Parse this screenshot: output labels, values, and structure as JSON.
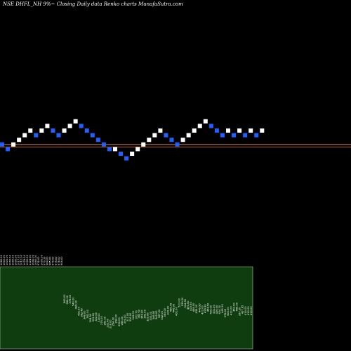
{
  "header": {
    "title": "NSE DHFL_NH 9%~  Closing Daily data  Renko  charts MunafaSutra.com"
  },
  "colors": {
    "background": "#000000",
    "brick_up": "#ffffff",
    "brick_down": "#1f5fff",
    "ref_line_upper": "#c87941",
    "ref_line_lower": "#b05a1a",
    "volume_fill": "#0f3d0f",
    "volume_edge": "#a8d8a8",
    "label_text": "#ffffff"
  },
  "chart_data": {
    "type": "renko",
    "bricks": {
      "levels": [
        2,
        1,
        2,
        3,
        4,
        5,
        4,
        5,
        6,
        5,
        4,
        5,
        6,
        7,
        6,
        5,
        4,
        3,
        2,
        1,
        1,
        0,
        -1,
        0,
        1,
        2,
        3,
        4,
        5,
        4,
        3,
        2,
        3,
        4,
        5,
        6,
        7,
        6,
        5,
        4,
        5,
        4,
        5,
        4,
        5,
        4,
        5
      ],
      "directions": [
        "down",
        "down",
        "up",
        "up",
        "up",
        "up",
        "down",
        "up",
        "up",
        "down",
        "down",
        "up",
        "up",
        "up",
        "down",
        "down",
        "down",
        "down",
        "down",
        "down",
        "up",
        "down",
        "down",
        "up",
        "up",
        "up",
        "up",
        "up",
        "up",
        "down",
        "down",
        "down",
        "up",
        "up",
        "up",
        "up",
        "up",
        "down",
        "down",
        "down",
        "up",
        "down",
        "up",
        "down",
        "up",
        "down",
        "up"
      ]
    },
    "reference_lines": [
      {
        "level": 2.0
      },
      {
        "level": 1.45
      }
    ],
    "volume_labels": [
      "1060.00",
      "1000.00",
      "1000.00",
      "1000.00",
      "1000.00",
      "1000.00",
      "1017.35",
      "1012.00",
      "1025.00",
      "1000.00",
      "1124.00",
      "1040.00",
      "1040.00",
      "978.00",
      "1000.00",
      "979.33",
      "964.00",
      "965.00",
      "979.00",
      "975.00",
      "978.00",
      "904.00",
      "580.00",
      "566.00",
      "576.00",
      "540.00",
      "496.20",
      "401.00",
      "382.40",
      "348.00",
      "362.00",
      "304.50",
      "315.00",
      "322.00",
      "310.00",
      "270.00",
      "263.00",
      "231.40",
      "218.00",
      "254.00",
      "294.00",
      "250.00",
      "265.00",
      "290.00",
      "317.00",
      "316.00",
      "343.00",
      "352.70",
      "363.50",
      "359.00",
      "362.00",
      "320.80",
      "333.00",
      "346.50",
      "349.00",
      "367.00",
      "342.00",
      "383.00",
      "415.00",
      "456.75",
      "446.00",
      "401.00",
      "523.00",
      "539.00",
      "514.90",
      "490.00",
      "472.50",
      "458.00",
      "435.00",
      "449.90",
      "422.00",
      "439.90",
      "458.50",
      "425.00",
      "431.00",
      "426.00",
      "424.30",
      "441.20",
      "376.00",
      "400.00",
      "411.00",
      "461.00",
      "465.00",
      "397.30",
      "427.85",
      "410.00",
      "410.00",
      "410.00"
    ]
  }
}
